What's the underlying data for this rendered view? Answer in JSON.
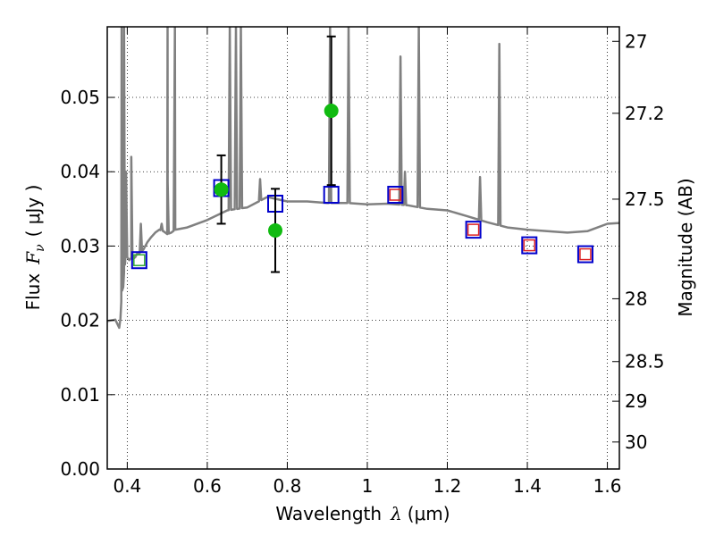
{
  "chart_data": {
    "type": "scatter",
    "xlabel_prefix": "Wavelength",
    "xlabel_symbol": "λ",
    "xlabel_unit": "(μm)",
    "ylabel_prefix": "Flux",
    "ylabel_symbol": "F",
    "ylabel_subscript": "ν",
    "ylabel_unit": "( μJy )",
    "y2label": "Magnitude (AB)",
    "xlim": [
      0.35,
      1.63
    ],
    "ylim": [
      0.0,
      0.0595
    ],
    "grid": true,
    "x_ticks": [
      0.4,
      0.6,
      0.8,
      1.0,
      1.2,
      1.4,
      1.6
    ],
    "x_tick_labels": [
      "0.4",
      "0.6",
      "0.8",
      "1",
      "1.2",
      "1.4",
      "1.6"
    ],
    "y_ticks": [
      0.0,
      0.01,
      0.02,
      0.03,
      0.04,
      0.05
    ],
    "y_tick_labels": [
      "0.00",
      "0.01",
      "0.02",
      "0.03",
      "0.04",
      "0.05"
    ],
    "y2_ticks": [
      27,
      27.2,
      27.5,
      28,
      28.5,
      29,
      30
    ],
    "y2_tick_labels": [
      "27",
      "27.2",
      "27.5",
      "28",
      "28.5",
      "29",
      "30"
    ],
    "template_spectrum": {
      "color": "#808080",
      "x": [
        0.35,
        0.37,
        0.38,
        0.383,
        0.385,
        0.387,
        0.39,
        0.392,
        0.395,
        0.4,
        0.405,
        0.41,
        0.415,
        0.42,
        0.425,
        0.43,
        0.44,
        0.45,
        0.46,
        0.47,
        0.48,
        0.49,
        0.5,
        0.51,
        0.52,
        0.55,
        0.6,
        0.65,
        0.7,
        0.75,
        0.8,
        0.85,
        0.9,
        0.95,
        1.0,
        1.05,
        1.1,
        1.15,
        1.2,
        1.25,
        1.3,
        1.35,
        1.4,
        1.45,
        1.5,
        1.55,
        1.6,
        1.63
      ],
      "y": [
        0.0199,
        0.0201,
        0.019,
        0.0203,
        0.0225,
        0.024,
        0.0245,
        0.0265,
        0.028,
        0.0285,
        0.0281,
        0.0284,
        0.0283,
        0.0285,
        0.029,
        0.029,
        0.0295,
        0.0305,
        0.0312,
        0.0318,
        0.0322,
        0.032,
        0.0316,
        0.0318,
        0.0322,
        0.0325,
        0.0335,
        0.0348,
        0.0352,
        0.0366,
        0.036,
        0.036,
        0.0358,
        0.0358,
        0.0356,
        0.0357,
        0.0355,
        0.035,
        0.0348,
        0.034,
        0.0332,
        0.0325,
        0.0322,
        0.032,
        0.0318,
        0.032,
        0.033,
        0.0331
      ],
      "emission_lines": [
        {
          "x": 0.386,
          "peak": 0.0595
        },
        {
          "x": 0.392,
          "peak": 0.0595
        },
        {
          "x": 0.397,
          "peak": 0.04
        },
        {
          "x": 0.41,
          "peak": 0.042
        },
        {
          "x": 0.434,
          "peak": 0.033
        },
        {
          "x": 0.486,
          "peak": 0.033
        },
        {
          "x": 0.501,
          "peak": 0.0386
        },
        {
          "x": 0.5007,
          "peak": 0.0595
        },
        {
          "x": 0.519,
          "peak": 0.0595
        },
        {
          "x": 0.6563,
          "peak": 0.0595
        },
        {
          "x": 0.6716,
          "peak": 0.0595
        },
        {
          "x": 0.684,
          "peak": 0.0595
        },
        {
          "x": 0.732,
          "peak": 0.039
        },
        {
          "x": 0.9069,
          "peak": 0.0595
        },
        {
          "x": 0.9532,
          "peak": 0.0595
        },
        {
          "x": 1.083,
          "peak": 0.0555
        },
        {
          "x": 1.0941,
          "peak": 0.04
        },
        {
          "x": 1.1287,
          "peak": 0.0595
        },
        {
          "x": 1.2818,
          "peak": 0.0393
        },
        {
          "x": 1.33,
          "peak": 0.0572
        }
      ]
    },
    "series": [
      {
        "marker": "square-open",
        "color": "#0000cc",
        "x": [
          0.43,
          0.635,
          0.77,
          0.91,
          1.07,
          1.265,
          1.405,
          1.545
        ],
        "y": [
          0.0281,
          0.0378,
          0.0357,
          0.0369,
          0.0369,
          0.0322,
          0.0301,
          0.0289
        ]
      },
      {
        "marker": "square-small-open",
        "color": "#dd2222",
        "x": [
          1.07,
          1.265,
          1.405,
          1.545
        ],
        "y": [
          0.0369,
          0.0322,
          0.0301,
          0.0289
        ]
      },
      {
        "marker": "square-small-open",
        "color": "#33aa33",
        "x": [
          0.43
        ],
        "y": [
          0.0281
        ]
      },
      {
        "marker": "circle-filled",
        "color": "#11bb11",
        "x": [
          0.635,
          0.77,
          0.91
        ],
        "y": [
          0.0376,
          0.0321,
          0.0482
        ],
        "err_low": [
          0.0046,
          0.0056,
          0.01
        ],
        "err_high": [
          0.0046,
          0.0056,
          0.01
        ]
      }
    ]
  }
}
